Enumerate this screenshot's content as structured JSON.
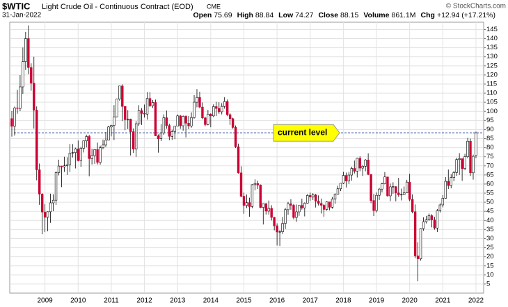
{
  "chart_data": {
    "type": "candlestick",
    "symbol": "$WTIC",
    "title": "Light Crude Oil - Continuous Contract (EOD)",
    "exchange": "CME",
    "date": "31-Jan-2022",
    "quote": [
      {
        "label": "Open",
        "value": "75.69"
      },
      {
        "label": "High",
        "value": "88.84"
      },
      {
        "label": "Low",
        "value": "74.27"
      },
      {
        "label": "Close",
        "value": "88.15"
      },
      {
        "label": "Volume",
        "value": "861.1M"
      },
      {
        "label": "Chg",
        "value": "+12.94 (+17.21%)"
      }
    ],
    "credit": "© StockCharts.com",
    "categories": [
      null,
      null,
      null,
      null,
      null,
      null,
      null,
      null,
      null,
      null,
      null,
      null,
      "2009",
      null,
      null,
      null,
      null,
      null,
      null,
      null,
      null,
      null,
      null,
      null,
      "2010",
      null,
      null,
      null,
      null,
      null,
      null,
      null,
      null,
      null,
      null,
      null,
      "2011",
      null,
      null,
      null,
      null,
      null,
      null,
      null,
      null,
      null,
      null,
      null,
      "2012",
      null,
      null,
      null,
      null,
      null,
      null,
      null,
      null,
      null,
      null,
      null,
      "2013",
      null,
      null,
      null,
      null,
      null,
      null,
      null,
      null,
      null,
      null,
      null,
      "2014",
      null,
      null,
      null,
      null,
      null,
      null,
      null,
      null,
      null,
      null,
      null,
      "2015",
      null,
      null,
      null,
      null,
      null,
      null,
      null,
      null,
      null,
      null,
      null,
      "2016",
      null,
      null,
      null,
      null,
      null,
      null,
      null,
      null,
      null,
      null,
      null,
      "2017",
      null,
      null,
      null,
      null,
      null,
      null,
      null,
      null,
      null,
      null,
      null,
      "2018",
      null,
      null,
      null,
      null,
      null,
      null,
      null,
      null,
      null,
      null,
      null,
      "2019",
      null,
      null,
      null,
      null,
      null,
      null,
      null,
      null,
      null,
      null,
      null,
      "2020",
      null,
      null,
      null,
      null,
      null,
      null,
      null,
      null,
      null,
      null,
      null,
      "2021",
      null,
      null,
      null,
      null,
      null,
      null,
      null,
      null,
      null,
      null,
      null,
      "2022"
    ],
    "open": [
      95.98,
      91.75,
      101.84,
      101.58,
      113.46,
      127.35,
      140.0,
      124.08,
      115.46,
      100.64,
      67.81,
      54.43,
      44.6,
      41.68,
      44.76,
      49.66,
      51.12,
      66.31,
      69.89,
      69.45,
      70.02,
      70.61,
      77.0,
      77.28,
      79.36,
      72.89,
      79.66,
      83.76,
      86.15,
      73.97,
      75.63,
      78.95,
      71.92,
      79.97,
      81.43,
      84.11,
      91.38,
      92.19,
      96.97,
      106.72,
      113.93,
      102.7,
      95.42,
      95.7,
      88.81,
      79.2,
      93.19,
      100.36,
      98.83,
      98.48,
      107.07,
      103.02,
      104.87,
      86.53,
      84.96,
      88.06,
      96.47,
      92.19,
      86.24,
      88.91,
      91.82,
      97.49,
      92.05,
      97.23,
      93.46,
      91.97,
      96.56,
      105.03,
      107.65,
      102.33,
      96.38,
      92.72,
      98.42,
      97.49,
      102.59,
      101.58,
      99.74,
      102.71,
      105.37,
      98.17,
      95.96,
      91.16,
      80.54,
      66.15,
      53.27,
      48.24,
      49.76,
      47.6,
      59.63,
      60.3,
      59.47,
      47.12,
      49.2,
      45.09,
      46.59,
      41.65,
      37.04,
      33.62,
      33.75,
      38.34,
      45.92,
      49.1,
      48.33,
      41.6,
      44.7,
      48.24,
      46.86,
      49.44,
      53.72,
      52.81,
      54.01,
      50.6,
      49.33,
      48.32,
      46.04,
      50.17,
      47.23,
      51.67,
      54.38,
      57.4,
      60.42,
      64.73,
      61.64,
      64.94,
      68.57,
      67.04,
      74.15,
      68.76,
      69.8,
      73.25,
      65.31,
      50.93,
      45.41,
      53.79,
      57.22,
      60.14,
      63.91,
      53.5,
      58.47,
      58.58,
      55.1,
      54.07,
      54.18,
      55.17,
      61.06,
      51.56,
      44.76,
      20.48,
      18.84,
      35.49,
      39.27,
      40.27,
      42.61,
      40.22,
      35.79,
      45.34,
      48.52,
      52.2,
      61.5,
      59.16,
      63.58,
      66.32,
      73.47,
      73.95,
      68.5,
      75.03,
      83.57,
      66.18,
      75.69
    ],
    "high": [
      100.09,
      102.59,
      111.8,
      119.93,
      135.09,
      143.67,
      147.27,
      126.4,
      130.0,
      102.68,
      71.25,
      54.88,
      49.0,
      44.96,
      54.66,
      54.34,
      66.95,
      73.38,
      70.0,
      75.0,
      74.68,
      82.0,
      82.0,
      80.0,
      83.95,
      80.51,
      83.85,
      87.15,
      87.09,
      79.38,
      79.24,
      82.77,
      81.1,
      84.44,
      88.63,
      92.06,
      92.58,
      103.41,
      106.95,
      113.93,
      114.83,
      102.8,
      100.62,
      95.96,
      90.52,
      94.65,
      103.37,
      101.77,
      103.74,
      110.55,
      110.55,
      106.27,
      106.43,
      87.32,
      92.94,
      98.29,
      100.42,
      93.21,
      89.87,
      91.82,
      98.24,
      97.98,
      97.72,
      97.8,
      97.45,
      99.42,
      108.93,
      112.24,
      110.74,
      104.88,
      97.0,
      100.75,
      98.93,
      103.84,
      105.22,
      104.99,
      104.5,
      107.73,
      106.48,
      98.91,
      96.47,
      92.24,
      82.22,
      69.74,
      55.24,
      54.24,
      52.48,
      59.9,
      62.58,
      61.86,
      59.77,
      49.3,
      49.47,
      50.92,
      48.36,
      41.99,
      38.39,
      34.69,
      41.9,
      46.78,
      50.21,
      51.67,
      49.05,
      48.75,
      48.36,
      51.93,
      49.92,
      54.51,
      55.24,
      54.94,
      54.59,
      53.76,
      52.0,
      48.99,
      50.43,
      50.22,
      52.86,
      54.84,
      59.05,
      60.51,
      66.66,
      66.3,
      66.66,
      69.56,
      72.9,
      74.46,
      75.27,
      70.41,
      73.78,
      76.9,
      65.43,
      54.55,
      55.37,
      57.81,
      60.73,
      66.6,
      63.99,
      60.28,
      60.94,
      58.81,
      63.38,
      57.47,
      58.65,
      62.34,
      65.65,
      54.32,
      48.75,
      28.0,
      35.73,
      41.63,
      42.52,
      43.78,
      43.43,
      41.93,
      46.26,
      49.43,
      53.93,
      63.81,
      67.98,
      65.47,
      67.26,
      74.45,
      76.98,
      74.0,
      76.67,
      85.41,
      84.97,
      76.15,
      88.84
    ],
    "low": [
      86.11,
      86.61,
      98.65,
      100.09,
      109.64,
      122.74,
      120.42,
      111.34,
      90.51,
      62.04,
      48.57,
      32.4,
      33.55,
      33.98,
      38.7,
      45.04,
      48.42,
      64.75,
      58.32,
      66.65,
      65.05,
      66.64,
      74.6,
      68.59,
      72.43,
      69.5,
      77.37,
      80.16,
      64.24,
      70.76,
      71.09,
      70.76,
      70.67,
      79.11,
      80.42,
      84.0,
      86.22,
      84.11,
      96.71,
      105.84,
      94.63,
      89.61,
      90.27,
      75.71,
      77.11,
      74.95,
      91.95,
      92.52,
      96.56,
      95.44,
      102.3,
      101.8,
      86.43,
      77.28,
      83.65,
      87.09,
      90.41,
      84.05,
      84.25,
      84.7,
      91.81,
      90.33,
      89.33,
      85.61,
      90.18,
      91.02,
      95.94,
      102.22,
      101.7,
      95.71,
      91.77,
      92.29,
      91.24,
      96.79,
      97.37,
      98.65,
      98.3,
      101.46,
      97.33,
      92.5,
      90.43,
      79.78,
      65.69,
      52.7,
      43.58,
      46.73,
      42.03,
      46.7,
      56.51,
      57.33,
      46.68,
      37.75,
      43.21,
      43.2,
      39.97,
      34.53,
      26.19,
      26.05,
      32.56,
      35.24,
      43.03,
      45.83,
      40.57,
      39.19,
      42.52,
      45.95,
      42.2,
      49.13,
      50.71,
      51.22,
      47.09,
      48.18,
      43.76,
      42.05,
      45.4,
      45.58,
      46.46,
      49.1,
      54.2,
      56.09,
      59.96,
      58.07,
      60.02,
      61.84,
      65.8,
      63.59,
      67.03,
      64.43,
      67.02,
      64.86,
      49.41,
      42.36,
      44.35,
      51.23,
      55.42,
      59.82,
      53.05,
      50.6,
      54.59,
      50.52,
      52.94,
      50.99,
      54.02,
      55.11,
      50.58,
      43.91,
      19.27,
      6.5,
      17.86,
      34.31,
      38.36,
      39.84,
      36.13,
      34.92,
      33.64,
      44.35,
      47.18,
      51.96,
      57.25,
      57.63,
      61.56,
      64.54,
      65.01,
      61.74,
      67.58,
      74.11,
      64.43,
      62.43,
      74.27
    ],
    "close": [
      91.75,
      101.84,
      101.58,
      113.46,
      127.35,
      140.0,
      124.08,
      115.46,
      100.64,
      67.81,
      54.43,
      44.6,
      41.68,
      44.76,
      49.66,
      51.12,
      66.31,
      69.89,
      69.45,
      70.02,
      70.61,
      77.0,
      77.28,
      79.36,
      72.89,
      79.66,
      83.76,
      86.15,
      73.97,
      75.63,
      78.95,
      71.92,
      79.97,
      81.43,
      84.11,
      91.38,
      92.19,
      96.97,
      106.72,
      113.93,
      102.7,
      95.42,
      95.7,
      88.81,
      79.2,
      93.19,
      100.36,
      98.83,
      98.48,
      107.07,
      103.02,
      104.87,
      86.53,
      84.96,
      88.06,
      96.47,
      92.19,
      86.24,
      88.91,
      91.82,
      97.49,
      92.05,
      97.23,
      93.46,
      91.97,
      96.56,
      105.03,
      107.65,
      102.33,
      96.38,
      92.72,
      98.42,
      97.49,
      102.59,
      101.58,
      99.74,
      102.71,
      105.37,
      98.17,
      95.96,
      91.16,
      80.54,
      66.15,
      53.27,
      48.24,
      49.76,
      47.6,
      59.63,
      60.3,
      59.47,
      47.12,
      49.2,
      45.09,
      46.59,
      41.65,
      37.04,
      33.62,
      33.75,
      38.34,
      45.92,
      49.1,
      48.33,
      41.6,
      44.7,
      48.24,
      46.86,
      49.44,
      53.72,
      52.81,
      54.01,
      50.6,
      49.33,
      48.32,
      46.04,
      50.17,
      47.23,
      51.67,
      54.38,
      57.4,
      60.42,
      64.73,
      61.64,
      64.94,
      68.57,
      67.04,
      74.15,
      68.76,
      69.8,
      73.25,
      65.31,
      50.93,
      45.41,
      53.79,
      57.22,
      60.14,
      63.91,
      53.5,
      58.47,
      58.58,
      55.1,
      54.07,
      54.18,
      55.17,
      61.06,
      51.56,
      44.76,
      20.48,
      18.84,
      35.49,
      39.27,
      40.27,
      42.61,
      40.22,
      35.79,
      45.34,
      48.52,
      52.2,
      61.5,
      59.16,
      63.58,
      66.32,
      73.47,
      73.95,
      68.5,
      75.03,
      83.57,
      66.18,
      75.21,
      88.15
    ],
    "up_color": "#ffffff",
    "down_color": "#cc0033",
    "ylim": [
      0,
      149
    ],
    "yticks": [
      5,
      10,
      15,
      20,
      25,
      30,
      35,
      40,
      45,
      50,
      55,
      60,
      65,
      70,
      75,
      80,
      85,
      90,
      95,
      100,
      105,
      110,
      115,
      120,
      125,
      130,
      135,
      140,
      145
    ],
    "grid": true,
    "reference_line": {
      "value": 88.15,
      "label": "current level",
      "color": "#ffff00"
    }
  }
}
